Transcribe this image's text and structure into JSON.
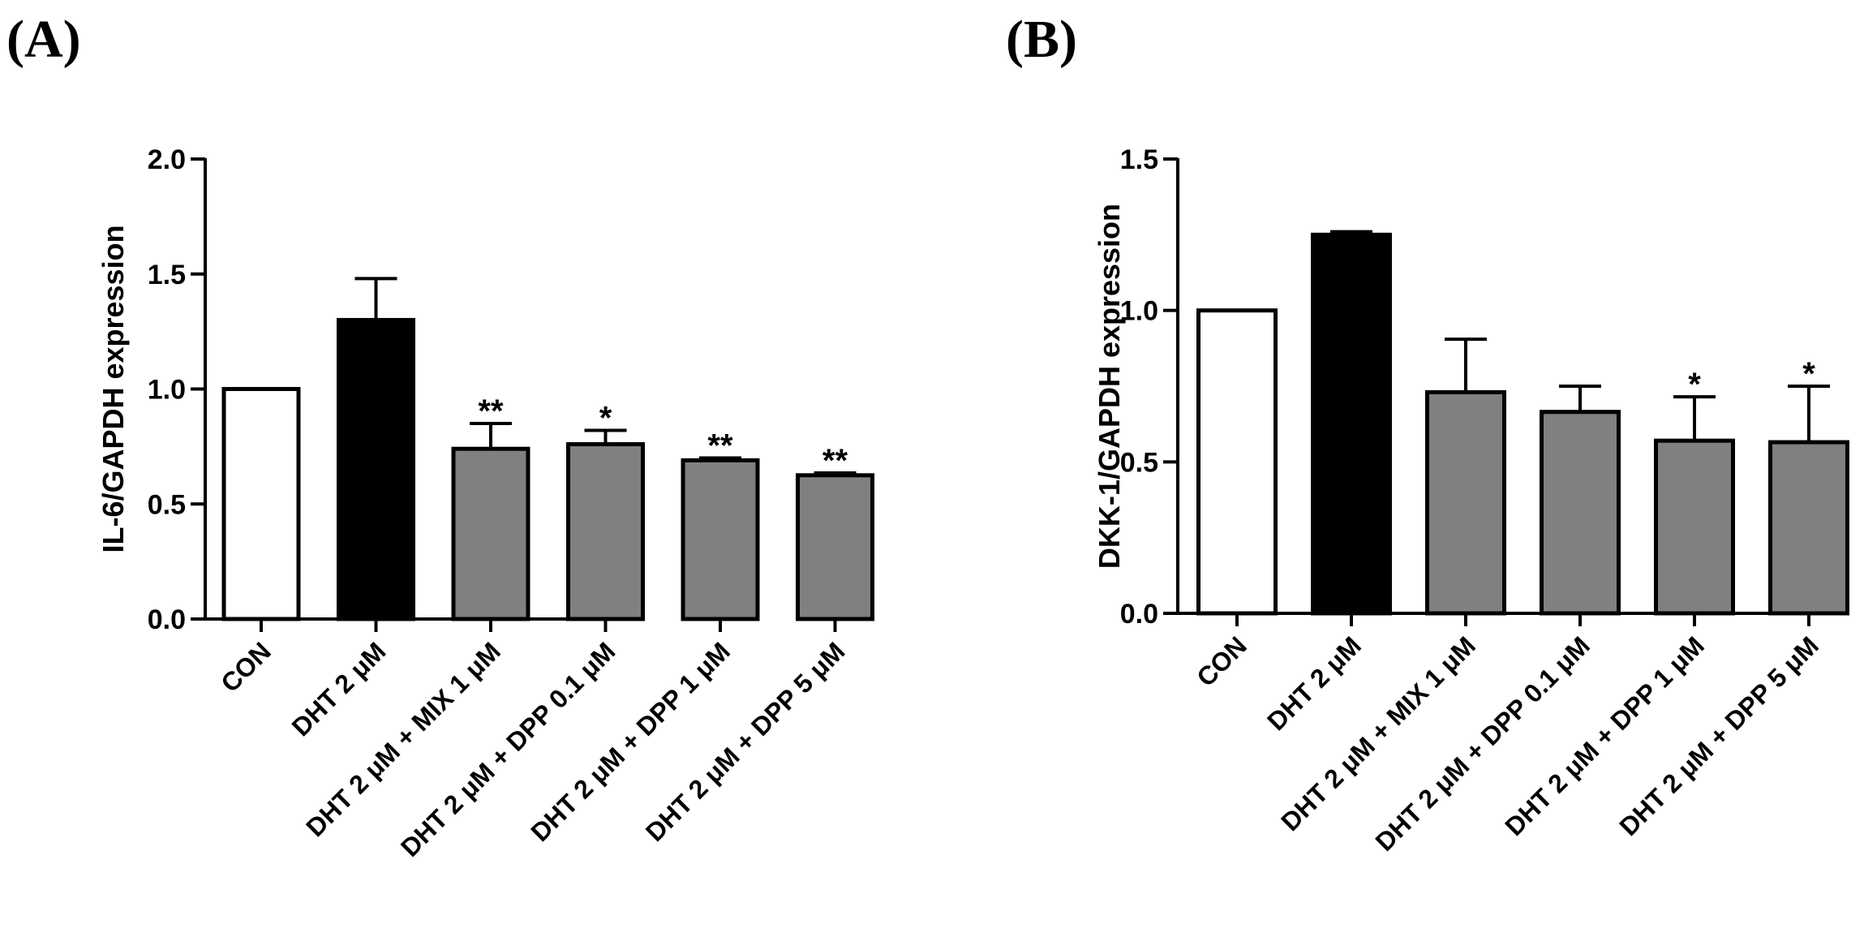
{
  "chart_data": [
    {
      "type": "bar",
      "panel_label": "(A)",
      "ylabel": "IL-6/GAPDH expression",
      "ylim": [
        0,
        2.0
      ],
      "yticks": [
        "0.0",
        "0.5",
        "1.0",
        "1.5",
        "2.0"
      ],
      "categories": [
        "CON",
        "DHT 2 μM",
        "DHT 2 μM + MIX 1 μM",
        "DHT 2 μM + DPP 0.1 μM",
        "DHT 2 μM + DPP 1 μM",
        "DHT 2 μM + DPP 5 μM"
      ],
      "values": [
        1.0,
        1.3,
        0.74,
        0.76,
        0.69,
        0.625
      ],
      "errors": [
        0.0,
        0.18,
        0.11,
        0.06,
        0.01,
        0.01
      ],
      "significance": [
        "",
        "",
        "**",
        "*",
        "**",
        "**"
      ],
      "fills": [
        "#ffffff",
        "#000000",
        "#808080",
        "#808080",
        "#808080",
        "#808080"
      ]
    },
    {
      "type": "bar",
      "panel_label": "(B)",
      "ylabel": "DKK-1/GAPDH expression",
      "ylim": [
        0,
        1.5
      ],
      "yticks": [
        "0.0",
        "0.5",
        "1.0",
        "1.5"
      ],
      "categories": [
        "CON",
        "DHT 2 μM",
        "DHT 2 μM + MIX 1 μM",
        "DHT 2 μM + DPP 0.1 μM",
        "DHT 2 μM + DPP 1 μM",
        "DHT 2 μM + DPP 5 μM"
      ],
      "values": [
        1.0,
        1.25,
        0.73,
        0.665,
        0.57,
        0.565
      ],
      "errors": [
        0.0,
        0.01,
        0.175,
        0.085,
        0.145,
        0.185
      ],
      "significance": [
        "",
        "",
        "",
        "",
        "*",
        "*"
      ],
      "fills": [
        "#ffffff",
        "#000000",
        "#808080",
        "#808080",
        "#808080",
        "#808080"
      ]
    }
  ]
}
